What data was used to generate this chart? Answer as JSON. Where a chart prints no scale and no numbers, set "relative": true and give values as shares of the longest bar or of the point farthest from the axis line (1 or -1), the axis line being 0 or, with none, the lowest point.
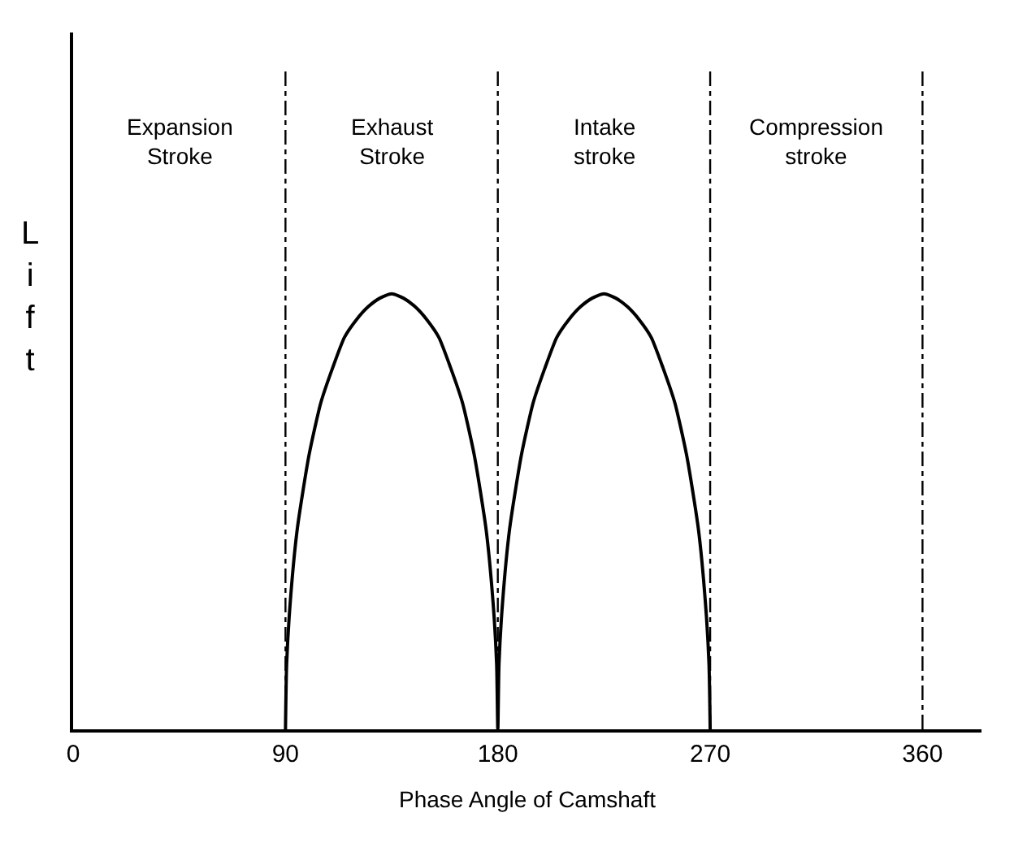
{
  "chart_data": {
    "type": "line",
    "relative": true,
    "xlabel": "Phase Angle of Camshaft",
    "ylabel": "Lift",
    "xlim": [
      0,
      385
    ],
    "xticks": [
      0,
      90,
      180,
      270,
      360
    ],
    "series": [
      {
        "color": "#000000",
        "x": [
          90,
          90.5,
          92,
          95,
          100,
          105,
          110,
          115,
          120,
          125,
          130,
          135,
          140,
          145,
          150,
          155,
          160,
          165,
          170,
          175,
          178,
          179.5,
          180,
          180.5,
          182,
          185,
          190,
          195,
          200,
          205,
          210,
          215,
          220,
          225,
          230,
          235,
          240,
          245,
          250,
          255,
          260,
          265,
          268,
          269.5,
          270
        ],
        "values": [
          0,
          0.15,
          0.29,
          0.46,
          0.63,
          0.75,
          0.83,
          0.9,
          0.94,
          0.97,
          0.99,
          1,
          0.99,
          0.97,
          0.94,
          0.9,
          0.83,
          0.75,
          0.63,
          0.46,
          0.29,
          0.15,
          0,
          0.15,
          0.29,
          0.46,
          0.63,
          0.75,
          0.83,
          0.9,
          0.94,
          0.97,
          0.99,
          1,
          0.99,
          0.97,
          0.94,
          0.9,
          0.83,
          0.75,
          0.63,
          0.46,
          0.29,
          0.15,
          0
        ]
      }
    ],
    "ref_lines": [
      {
        "axis": "x",
        "value": 90,
        "line_style": "dashdot",
        "color": "#000000"
      },
      {
        "axis": "x",
        "value": 180,
        "line_style": "dashdot",
        "color": "#000000"
      },
      {
        "axis": "x",
        "value": 270,
        "line_style": "dashdot",
        "color": "#000000"
      },
      {
        "axis": "x",
        "value": 360,
        "line_style": "dashdot",
        "color": "#000000"
      }
    ],
    "annotations": [
      "Expansion\nStroke",
      "Exhaust\nStroke",
      "Intake\nstroke",
      "Compression\nstroke"
    ],
    "marker": "none",
    "line_style": "solid"
  }
}
